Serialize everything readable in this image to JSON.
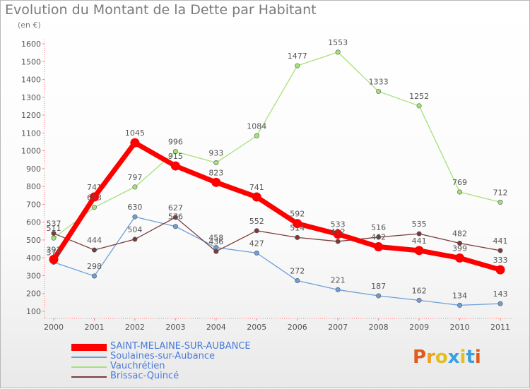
{
  "header": {
    "title": "Evolution du Montant de la Dette par Habitant",
    "subtitle": "(en €)"
  },
  "logo": {
    "text": "Proxiti",
    "colors": [
      "#e05a1c",
      "#f0a020",
      "#e0c020",
      "#3aa0e0",
      "#e0c020",
      "#3aa0e0",
      "#e05a1c"
    ]
  },
  "chart_data": {
    "type": "line",
    "title": "Evolution du Montant de la Dette par Habitant",
    "ylabel": "(en €)",
    "x": [
      "2000",
      "2001",
      "2002",
      "2003",
      "2004",
      "2005",
      "2006",
      "2007",
      "2008",
      "2009",
      "2010",
      "2011"
    ],
    "yticks": [
      100,
      200,
      300,
      400,
      500,
      600,
      700,
      800,
      900,
      1000,
      1100,
      1200,
      1300,
      1400,
      1500,
      1600
    ],
    "ylim": [
      100,
      1600
    ],
    "grid": false,
    "legend_position": "bottom-left",
    "series": [
      {
        "name": "SAINT-MELAINE-SUR-AUBANCE",
        "color": "#ff0000",
        "values": [
          391,
          741,
          1045,
          915,
          823,
          741,
          592,
          533,
          462,
          441,
          399,
          333
        ]
      },
      {
        "name": "Soulaines-sur-Aubance",
        "color": "#6f9ed6",
        "values": [
          375,
          298,
          630,
          576,
          458,
          427,
          272,
          221,
          187,
          162,
          134,
          143
        ]
      },
      {
        "name": "Vauchrétien",
        "color": "#a6e27a",
        "values": [
          511,
          683,
          797,
          996,
          933,
          1084,
          1477,
          1553,
          1333,
          1252,
          769,
          712
        ]
      },
      {
        "name": "Brissac-Quincé",
        "color": "#7a3b3b",
        "values": [
          537,
          444,
          504,
          627,
          436,
          552,
          514,
          492,
          516,
          535,
          482,
          441
        ]
      }
    ]
  }
}
